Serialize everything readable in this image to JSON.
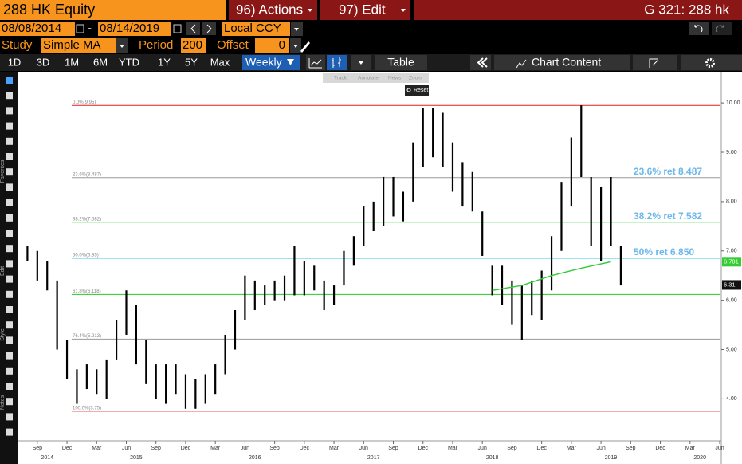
{
  "toolbar": {
    "ticker": "288 HK Equity",
    "actions": "96) Actions",
    "edit": "97) Edit",
    "screen": "G 321: 288 hk",
    "start_date": "08/08/2014",
    "end_date": "08/14/2019",
    "currency": "Local CCY",
    "study_label": "Study",
    "study": "Simple MA",
    "period_label": "Period",
    "period": 200,
    "offset_label": "Offset",
    "offset": 0,
    "tabs": [
      "1D",
      "3D",
      "1M",
      "6M",
      "YTD",
      "1Y",
      "5Y",
      "Max"
    ],
    "frequency": "Weekly",
    "table": "Table",
    "chart_content": "Chart Content",
    "side_labels": [
      "Favorites",
      "Edit",
      "Style",
      "Notes"
    ]
  },
  "overlay": {
    "tools": [
      "Track",
      "Annotate",
      "News",
      "Zoom"
    ],
    "reset": "Reset"
  },
  "chart_data": {
    "type": "hilo",
    "color": "#000000",
    "x": [
      "2014-08",
      "2014-09",
      "2014-10",
      "2014-11",
      "2014-12",
      "2015-01",
      "2015-02",
      "2015-03",
      "2015-04",
      "2015-05",
      "2015-06",
      "2015-07",
      "2015-08",
      "2015-09",
      "2015-10",
      "2015-11",
      "2015-12",
      "2016-01",
      "2016-02",
      "2016-03",
      "2016-04",
      "2016-05",
      "2016-06",
      "2016-07",
      "2016-08",
      "2016-09",
      "2016-10",
      "2016-11",
      "2016-12",
      "2017-01",
      "2017-02",
      "2017-03",
      "2017-04",
      "2017-05",
      "2017-06",
      "2017-07",
      "2017-08",
      "2017-09",
      "2017-10",
      "2017-11",
      "2017-12",
      "2018-01",
      "2018-02",
      "2018-03",
      "2018-04",
      "2018-05",
      "2018-06",
      "2018-07",
      "2018-08",
      "2018-09",
      "2018-10",
      "2018-11",
      "2018-12",
      "2019-01",
      "2019-02",
      "2019-03",
      "2019-04",
      "2019-05",
      "2019-06",
      "2019-07",
      "2019-08"
    ],
    "high": [
      7.1,
      7.0,
      6.8,
      6.4,
      5.2,
      4.6,
      4.7,
      4.6,
      4.8,
      5.6,
      6.2,
      5.9,
      5.2,
      4.7,
      4.7,
      4.7,
      4.5,
      4.4,
      4.5,
      4.7,
      5.3,
      5.8,
      6.5,
      6.4,
      6.3,
      6.4,
      6.5,
      7.1,
      6.8,
      6.7,
      6.4,
      6.3,
      7.0,
      7.3,
      7.9,
      8.0,
      8.5,
      8.5,
      8.2,
      9.2,
      9.9,
      9.9,
      9.8,
      9.2,
      8.8,
      8.6,
      7.8,
      6.7,
      6.7,
      6.4,
      6.3,
      6.4,
      6.6,
      7.3,
      8.4,
      9.3,
      9.95,
      8.5,
      8.3,
      8.5,
      7.1
    ],
    "low": [
      6.8,
      6.4,
      6.2,
      5.0,
      4.4,
      3.9,
      4.2,
      4.1,
      4.0,
      4.8,
      5.3,
      4.7,
      4.3,
      4.0,
      3.9,
      4.1,
      3.8,
      3.8,
      3.9,
      4.1,
      4.5,
      5.0,
      5.6,
      5.8,
      5.9,
      6.0,
      6.0,
      6.1,
      6.1,
      6.2,
      5.8,
      5.9,
      6.3,
      6.7,
      7.1,
      7.4,
      7.5,
      7.7,
      7.6,
      8.0,
      8.7,
      8.9,
      8.7,
      8.2,
      7.9,
      7.8,
      6.9,
      6.1,
      5.9,
      5.5,
      5.2,
      5.7,
      5.6,
      6.2,
      7.0,
      7.9,
      8.5,
      7.1,
      6.8,
      7.1,
      6.3
    ],
    "ma": {
      "x": [
        "2018-07",
        "2018-10",
        "2019-01",
        "2019-04",
        "2019-07"
      ],
      "values": [
        6.2,
        6.3,
        6.5,
        6.65,
        6.78
      ],
      "color": "#33cc33"
    },
    "levels": [
      {
        "label": "0.0%(9.95)",
        "value": 9.95,
        "color": "#e02020"
      },
      {
        "label": "23.6%(8.487)",
        "value": 8.487,
        "color": "#999999"
      },
      {
        "label": "38.2%(7.582)",
        "value": 7.582,
        "color": "#22cc22"
      },
      {
        "label": "50.0%(6.85)",
        "value": 6.85,
        "color": "#33ccdd"
      },
      {
        "label": "61.8%(6.118)",
        "value": 6.118,
        "color": "#22cc22"
      },
      {
        "label": "76.4%(5.213)",
        "value": 5.213,
        "color": "#999999"
      },
      {
        "label": "100.0%(3.75)",
        "value": 3.75,
        "color": "#e02020"
      }
    ],
    "annotations": [
      {
        "text": "23.6% ret 8.487",
        "value": 8.487
      },
      {
        "text": "38.2% ret 7.582",
        "value": 7.582
      },
      {
        "text": "50% ret 6.850",
        "value": 6.85
      }
    ],
    "price_tags": [
      {
        "value": 6.781,
        "color": "#33cc33"
      },
      {
        "value": 6.31,
        "color": "#111111"
      }
    ],
    "xlim": [
      "2014-07",
      "2020-06"
    ],
    "ylim": [
      3.15,
      10.6
    ],
    "yticks": [
      {
        "value": 4,
        "label": "4.00"
      },
      {
        "value": 5,
        "label": "5.00"
      },
      {
        "value": 6,
        "label": "6.00"
      },
      {
        "value": 7,
        "label": "7.00"
      },
      {
        "value": 8,
        "label": "8.00"
      },
      {
        "value": 9,
        "label": "9.00"
      },
      {
        "value": 10,
        "label": "10.00"
      }
    ],
    "xticks": [
      {
        "value": "2014-09",
        "label": "Sep"
      },
      {
        "value": "2014-12",
        "label": "Dec"
      },
      {
        "value": "2015-03",
        "label": "Mar"
      },
      {
        "value": "2015-06",
        "label": "Jun"
      },
      {
        "value": "2015-09",
        "label": "Sep"
      },
      {
        "value": "2015-12",
        "label": "Dec"
      },
      {
        "value": "2016-03",
        "label": "Mar"
      },
      {
        "value": "2016-06",
        "label": "Jun"
      },
      {
        "value": "2016-09",
        "label": "Sep"
      },
      {
        "value": "2016-12",
        "label": "Dec"
      },
      {
        "value": "2017-03",
        "label": "Mar"
      },
      {
        "value": "2017-06",
        "label": "Jun"
      },
      {
        "value": "2017-09",
        "label": "Sep"
      },
      {
        "value": "2017-12",
        "label": "Dec"
      },
      {
        "value": "2018-03",
        "label": "Mar"
      },
      {
        "value": "2018-06",
        "label": "Jun"
      },
      {
        "value": "2018-09",
        "label": "Sep"
      },
      {
        "value": "2018-12",
        "label": "Dec"
      },
      {
        "value": "2019-03",
        "label": "Mar"
      },
      {
        "value": "2019-06",
        "label": "Jun"
      },
      {
        "value": "2019-09",
        "label": "Sep"
      },
      {
        "value": "2019-12",
        "label": "Dec"
      },
      {
        "value": "2020-03",
        "label": "Mar"
      },
      {
        "value": "2020-06",
        "label": "Jun"
      }
    ],
    "year_ticks": [
      {
        "value": "2014-10",
        "label": "2014"
      },
      {
        "value": "2015-07",
        "label": "2015"
      },
      {
        "value": "2016-07",
        "label": "2016"
      },
      {
        "value": "2017-07",
        "label": "2017"
      },
      {
        "value": "2018-07",
        "label": "2018"
      },
      {
        "value": "2019-07",
        "label": "2019"
      },
      {
        "value": "2020-04",
        "label": "2020"
      }
    ]
  }
}
